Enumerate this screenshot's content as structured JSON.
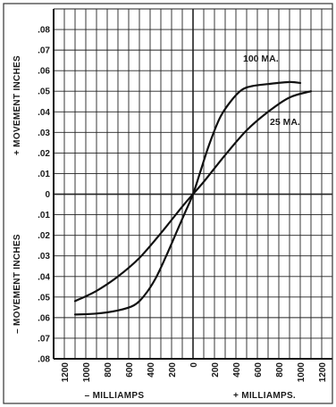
{
  "chart_data": {
    "type": "line",
    "grid": true,
    "xlim": [
      -1300,
      1300
    ],
    "ylim": [
      -0.08,
      0.09
    ],
    "x_ticks": [
      -1200,
      -1000,
      -800,
      -600,
      -400,
      -200,
      0,
      200,
      400,
      600,
      800,
      1000,
      1200
    ],
    "x_tick_labels": [
      "1200",
      "1000",
      "800",
      "600",
      "400",
      "200",
      "0",
      "200",
      "400",
      "600",
      "800",
      "1000",
      "1200"
    ],
    "y_ticks": [
      0.08,
      0.07,
      0.06,
      0.05,
      0.04,
      0.03,
      0.02,
      0.01,
      0,
      -0.01,
      -0.02,
      -0.03,
      -0.04,
      -0.05,
      -0.06,
      -0.07,
      -0.08
    ],
    "y_tick_labels": [
      ".08",
      ".07",
      ".06",
      ".05",
      ".04",
      ".03",
      ".02",
      ".01",
      "0",
      ".01",
      ".02",
      ".03",
      ".04",
      ".05",
      ".06",
      ".07",
      ".08"
    ],
    "xlabel_left": "– MILLIAMPS",
    "xlabel_right": "+ MILLIAMPS.",
    "ylabel_top": "+ MOVEMENT INCHES",
    "ylabel_bottom": "– MOVEMENT INCHES",
    "series": [
      {
        "name": "100 MA.",
        "x": [
          -1100,
          -900,
          -700,
          -550,
          -450,
          -350,
          -250,
          -150,
          -75,
          0,
          75,
          150,
          250,
          350,
          450,
          550,
          700,
          900,
          1000
        ],
        "y": [
          -0.0585,
          -0.058,
          -0.0565,
          -0.054,
          -0.049,
          -0.041,
          -0.03,
          -0.018,
          -0.009,
          0.0,
          0.012,
          0.024,
          0.037,
          0.045,
          0.0505,
          0.0525,
          0.0535,
          0.0545,
          0.054
        ]
      },
      {
        "name": "25 MA.",
        "x": [
          -1100,
          -900,
          -700,
          -500,
          -300,
          -100,
          0,
          100,
          300,
          500,
          700,
          900,
          1100
        ],
        "y": [
          -0.052,
          -0.047,
          -0.04,
          -0.031,
          -0.019,
          -0.006,
          0.0,
          0.006,
          0.019,
          0.031,
          0.04,
          0.047,
          0.05
        ]
      }
    ]
  }
}
